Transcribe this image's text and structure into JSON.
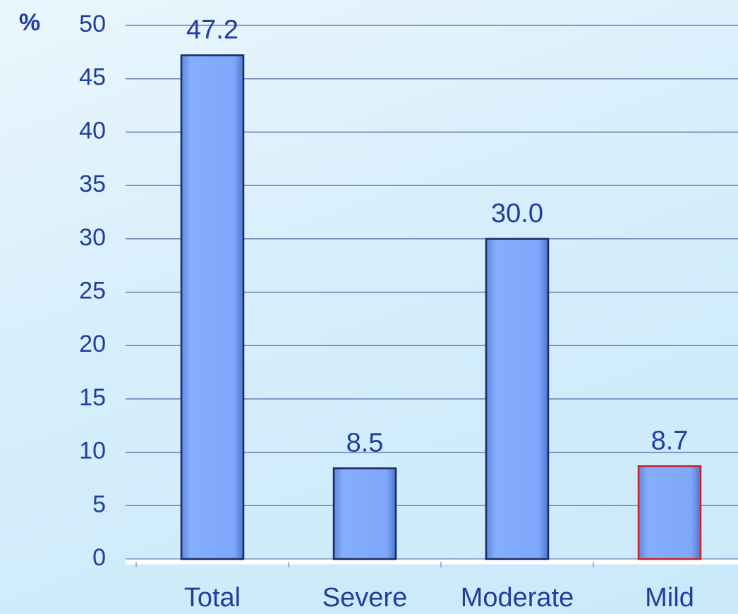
{
  "chart_data": {
    "type": "bar",
    "y_label": "%",
    "categories": [
      "Total",
      "Severe",
      "Moderate",
      "Mild"
    ],
    "values": [
      47.2,
      8.5,
      30.0,
      8.7
    ],
    "value_labels": [
      "47.2",
      "8.5",
      "30.0",
      "8.7"
    ],
    "color": "#7fa8fb",
    "edge_colors": [
      "#1b2a66",
      "#1b2a66",
      "#1b2a66",
      "#d0202a"
    ],
    "ylim": [
      0,
      50
    ],
    "yticks": [
      0,
      5,
      10,
      15,
      20,
      25,
      30,
      35,
      40,
      45,
      50
    ],
    "grid": true
  }
}
